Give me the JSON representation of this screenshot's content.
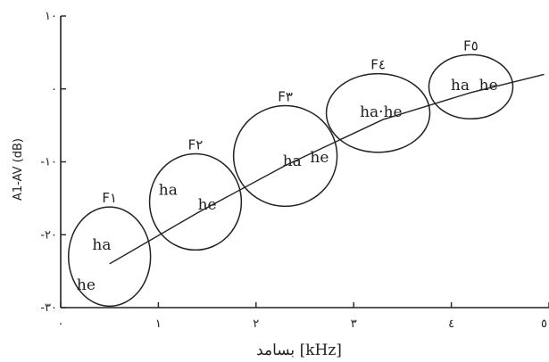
{
  "chart_data": {
    "type": "scatter",
    "xlabel": "بسامد [kHz]",
    "ylabel": "A1-AV (dB)",
    "xlim": [
      0,
      5
    ],
    "ylim": [
      -30,
      10
    ],
    "x_ticks": [
      0,
      1,
      2,
      3,
      4,
      5
    ],
    "x_tick_labels": [
      "٠",
      "١",
      "٢",
      "٣",
      "٤",
      "٥"
    ],
    "y_ticks": [
      10,
      0,
      -10,
      -20,
      -30
    ],
    "y_tick_labels": [
      "١٠",
      "٠",
      "-١٠",
      "-٢٠",
      "-٣٠"
    ],
    "grid": false,
    "trend_line": {
      "x": [
        0.5,
        1.4,
        2.3,
        3.3,
        4.2,
        4.95
      ],
      "y": [
        -24.0,
        -17.0,
        -10.5,
        -4.2,
        -0.5,
        2.0
      ]
    },
    "regions": [
      {
        "label": "F١",
        "cx": 0.5,
        "cy": -23.0,
        "rx": 0.42,
        "ry": 6.8,
        "points": [
          {
            "text": "ha",
            "x": 0.42,
            "y": -21.5
          },
          {
            "text": "he",
            "x": 0.26,
            "y": -27.0
          }
        ]
      },
      {
        "label": "F٢",
        "cx": 1.38,
        "cy": -15.5,
        "rx": 0.47,
        "ry": 6.6,
        "points": [
          {
            "text": "ha",
            "x": 1.1,
            "y": -14.0
          },
          {
            "text": "he",
            "x": 1.5,
            "y": -16.0
          }
        ]
      },
      {
        "label": "F٣",
        "cx": 2.3,
        "cy": -9.2,
        "rx": 0.53,
        "ry": 6.9,
        "points": [
          {
            "text": "ha",
            "x": 2.37,
            "y": -10.0
          },
          {
            "text": "he",
            "x": 2.65,
            "y": -9.5
          }
        ]
      },
      {
        "label": "F٤",
        "cx": 3.25,
        "cy": -3.3,
        "rx": 0.53,
        "ry": 5.4,
        "points": [
          {
            "text": "ha·he",
            "x": 3.28,
            "y": -3.3
          }
        ]
      },
      {
        "label": "F٥",
        "cx": 4.2,
        "cy": 0.3,
        "rx": 0.43,
        "ry": 4.4,
        "points": [
          {
            "text": "ha",
            "x": 4.09,
            "y": 0.4
          },
          {
            "text": "he",
            "x": 4.38,
            "y": 0.4
          }
        ]
      }
    ]
  }
}
